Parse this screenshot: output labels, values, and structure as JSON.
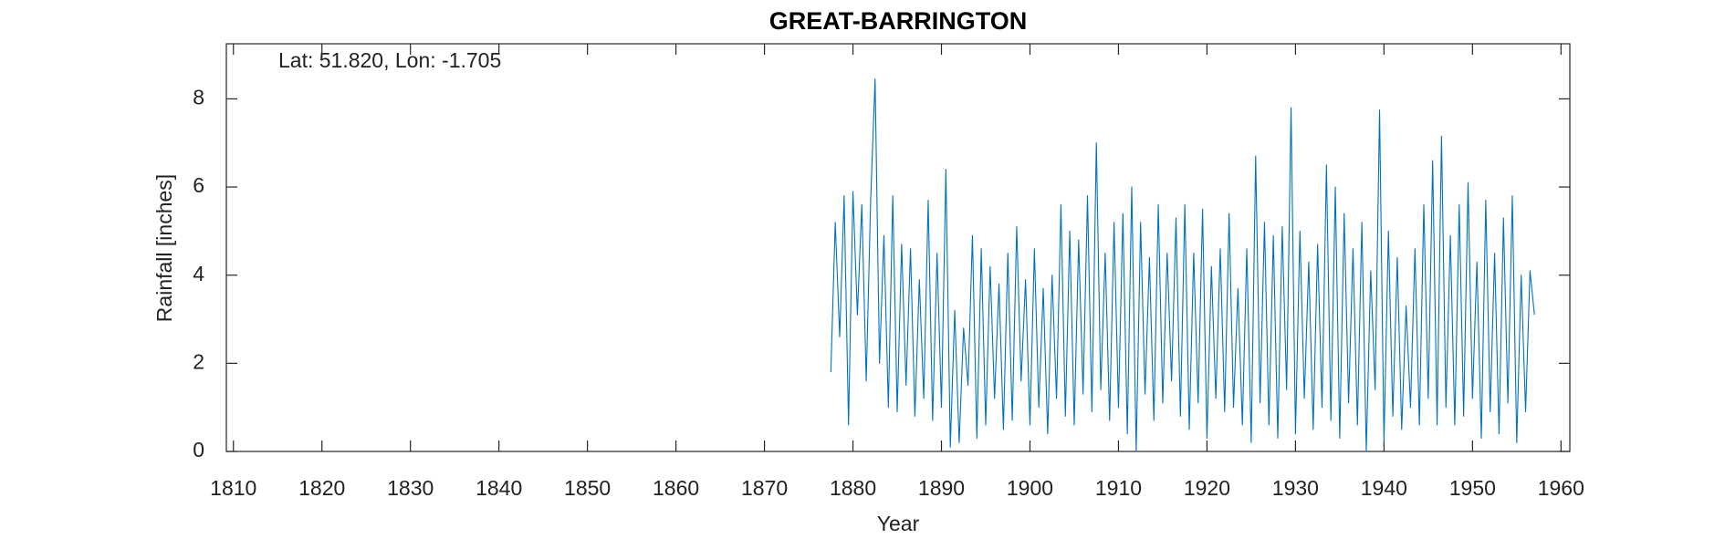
{
  "chart_data": {
    "type": "line",
    "title": "GREAT-BARRINGTON",
    "annotation": "Lat: 51.820, Lon: -1.705",
    "x_label": "Year",
    "y_label": "Rainfall [inches]",
    "xlim": [
      1809.2,
      1961
    ],
    "ylim": [
      0,
      9.25
    ],
    "xticks": [
      1810,
      1820,
      1830,
      1840,
      1850,
      1860,
      1870,
      1880,
      1890,
      1900,
      1910,
      1920,
      1930,
      1940,
      1950,
      1960
    ],
    "yticks": [
      0,
      2,
      4,
      6,
      8
    ],
    "grid": false,
    "x": [
      1877.5,
      1878,
      1878.5,
      1879,
      1879.5,
      1880,
      1880.5,
      1881,
      1881.5,
      1882,
      1882.5,
      1883,
      1883.5,
      1884,
      1884.5,
      1885,
      1885.5,
      1886,
      1886.5,
      1887,
      1887.5,
      1888,
      1888.5,
      1889,
      1889.5,
      1890,
      1890.5,
      1891,
      1891.5,
      1892,
      1892.5,
      1893,
      1893.5,
      1894,
      1894.5,
      1895,
      1895.5,
      1896,
      1896.5,
      1897,
      1897.5,
      1898,
      1898.5,
      1899,
      1899.5,
      1900,
      1900.5,
      1901,
      1901.5,
      1902,
      1902.5,
      1903,
      1903.5,
      1904,
      1904.5,
      1905,
      1905.5,
      1906,
      1906.5,
      1907,
      1907.5,
      1908,
      1908.5,
      1909,
      1909.5,
      1910,
      1910.5,
      1911,
      1911.5,
      1912,
      1912.5,
      1913,
      1913.5,
      1914,
      1914.5,
      1915,
      1915.5,
      1916,
      1916.5,
      1917,
      1917.5,
      1918,
      1918.5,
      1919,
      1919.5,
      1920,
      1920.5,
      1921,
      1921.5,
      1922,
      1922.5,
      1923,
      1923.5,
      1924,
      1924.5,
      1925,
      1925.5,
      1926,
      1926.5,
      1927,
      1927.5,
      1928,
      1928.5,
      1929,
      1929.5,
      1930,
      1930.5,
      1931,
      1931.5,
      1932,
      1932.5,
      1933,
      1933.5,
      1934,
      1934.5,
      1935,
      1935.5,
      1936,
      1936.5,
      1937,
      1937.5,
      1938,
      1938.5,
      1939,
      1939.5,
      1940,
      1940.5,
      1941,
      1941.5,
      1942,
      1942.5,
      1943,
      1943.5,
      1944,
      1944.5,
      1945,
      1945.5,
      1946,
      1946.5,
      1947,
      1947.5,
      1948,
      1948.5,
      1949,
      1949.5,
      1950,
      1950.5,
      1951,
      1951.5,
      1952,
      1952.5,
      1953,
      1953.5,
      1954,
      1954.5,
      1955,
      1955.5,
      1956,
      1956.5,
      1957
    ],
    "series": [
      {
        "color": "#0072bd",
        "values": [
          1.8,
          5.2,
          2.6,
          5.8,
          0.6,
          5.9,
          3.1,
          5.6,
          1.6,
          5.7,
          8.45,
          2.0,
          4.9,
          1.0,
          5.8,
          0.9,
          4.7,
          1.5,
          4.6,
          0.8,
          3.9,
          1.2,
          5.7,
          0.7,
          4.5,
          1.0,
          6.4,
          0.1,
          3.2,
          0.2,
          2.8,
          1.5,
          4.9,
          0.3,
          4.6,
          0.6,
          4.2,
          1.2,
          3.8,
          0.5,
          4.5,
          0.7,
          5.1,
          1.6,
          3.9,
          0.6,
          4.6,
          1.0,
          3.7,
          0.4,
          4.0,
          1.2,
          5.6,
          0.8,
          5.0,
          0.6,
          4.8,
          1.3,
          5.8,
          0.9,
          7.0,
          1.4,
          4.5,
          0.7,
          5.2,
          1.0,
          5.4,
          0.4,
          6.0,
          0.0,
          5.2,
          1.3,
          4.4,
          0.7,
          5.6,
          1.1,
          4.5,
          1.6,
          5.3,
          0.8,
          5.6,
          0.5,
          4.5,
          1.1,
          5.5,
          0.3,
          4.2,
          1.2,
          4.6,
          0.9,
          5.4,
          1.0,
          3.7,
          0.6,
          4.6,
          0.2,
          6.7,
          1.1,
          5.2,
          0.6,
          4.9,
          0.3,
          5.1,
          1.4,
          7.8,
          0.4,
          5.0,
          1.2,
          4.3,
          0.5,
          4.7,
          1.0,
          6.5,
          0.7,
          6.0,
          0.3,
          5.4,
          1.1,
          4.6,
          0.6,
          5.2,
          0.0,
          4.1,
          1.4,
          7.75,
          0.2,
          5.0,
          0.8,
          4.4,
          0.5,
          3.3,
          1.0,
          4.6,
          0.6,
          5.6,
          1.2,
          6.6,
          0.6,
          7.15,
          1.0,
          4.9,
          0.6,
          5.6,
          0.8,
          6.1,
          1.2,
          4.3,
          0.3,
          5.7,
          0.9,
          4.5,
          0.4,
          5.3,
          1.1,
          5.8,
          0.2,
          4.0,
          0.9,
          4.1,
          3.1
        ]
      }
    ]
  }
}
